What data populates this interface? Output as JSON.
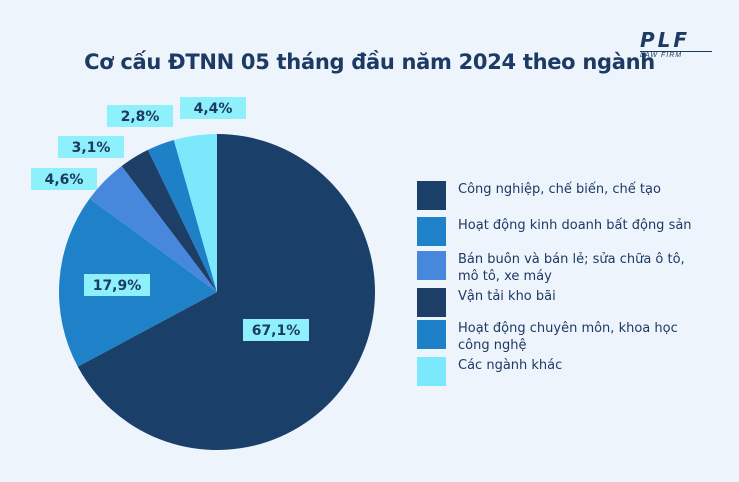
{
  "chart_data": {
    "type": "pie",
    "title": "Cơ cấu ĐTNN 05 tháng đầu năm 2024 theo ngành",
    "slices": [
      {
        "label": "Công nghiệp, chế biến, chế tạo",
        "value": 67.1,
        "display": "67,1%",
        "color": "#1a4069"
      },
      {
        "label": "Hoạt động kinh doanh bất động sản",
        "value": 17.9,
        "display": "17,9%",
        "color": "#1f82c8"
      },
      {
        "label": "Bán buôn và bán lẻ; sửa chữa ô tô, mô tô, xe máy",
        "value": 4.6,
        "display": "4,6%",
        "color": "#4788dc"
      },
      {
        "label": "Vận tải kho bãi",
        "value": 3.1,
        "display": "3,1%",
        "color": "#1d3e66"
      },
      {
        "label": "Hoạt động chuyên môn, khoa học công nghệ",
        "value": 2.8,
        "display": "2,8%",
        "color": "#1e80c6"
      },
      {
        "label": "Các ngành khác",
        "value": 4.4,
        "display": "4,4%",
        "color": "#7ce8fb"
      }
    ],
    "legend_position": "right",
    "label_bg_color": "#8ef0fb"
  },
  "logo": {
    "mark": "PLF",
    "subtitle": "LAW FIRM"
  }
}
